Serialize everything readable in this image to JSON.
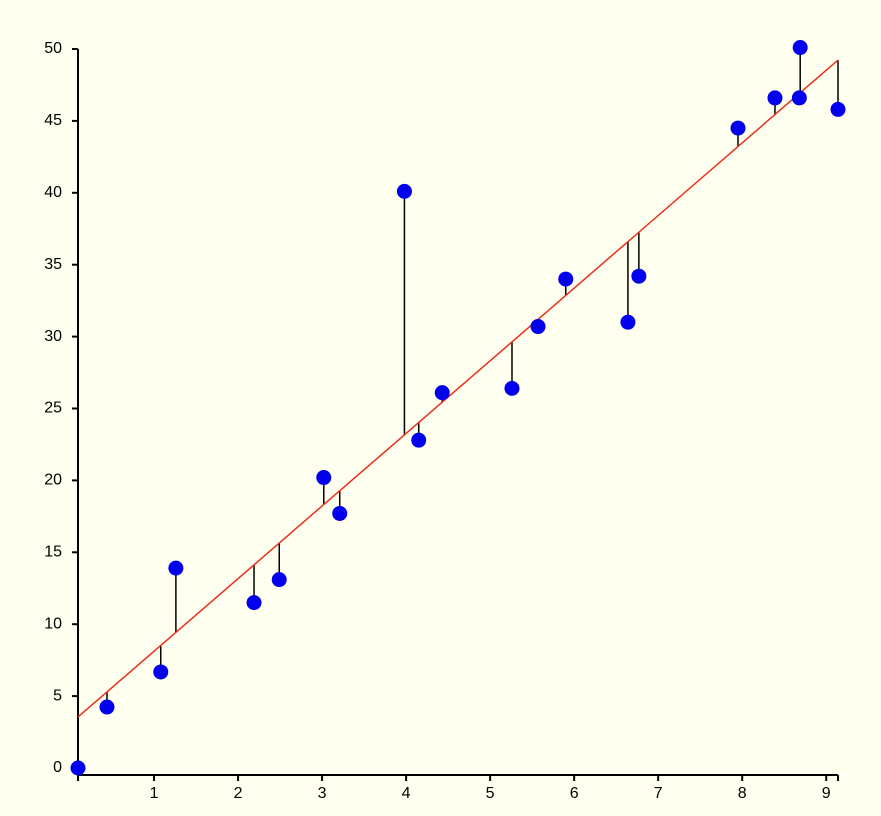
{
  "chart_data": {
    "type": "scatter",
    "x": [
      0.095,
      0.44,
      1.08,
      1.26,
      2.19,
      2.49,
      3.02,
      3.21,
      3.98,
      4.15,
      4.43,
      5.26,
      5.57,
      5.9,
      6.64,
      6.77,
      7.95,
      8.39,
      8.69,
      8.68,
      9.14
    ],
    "series": [
      {
        "color": "#0000ee",
        "values": [
          0,
          4.24,
          6.68,
          13.9,
          11.5,
          13.1,
          20.2,
          17.7,
          40.1,
          22.8,
          26.1,
          26.4,
          30.7,
          34.0,
          31.0,
          34.2,
          44.5,
          46.6,
          50.1,
          46.6,
          45.8
        ]
      }
    ],
    "regression": {
      "slope": 5.05,
      "intercept": 3.07,
      "color": "#e8301c"
    },
    "xlim": [
      0.095,
      9.14
    ],
    "xticks": [
      1,
      2,
      3,
      4,
      5,
      6,
      7,
      8,
      9
    ],
    "ylim": [
      0,
      50
    ],
    "yticks": [
      0,
      5,
      10,
      15,
      20,
      25,
      30,
      35,
      40,
      45,
      50
    ]
  }
}
